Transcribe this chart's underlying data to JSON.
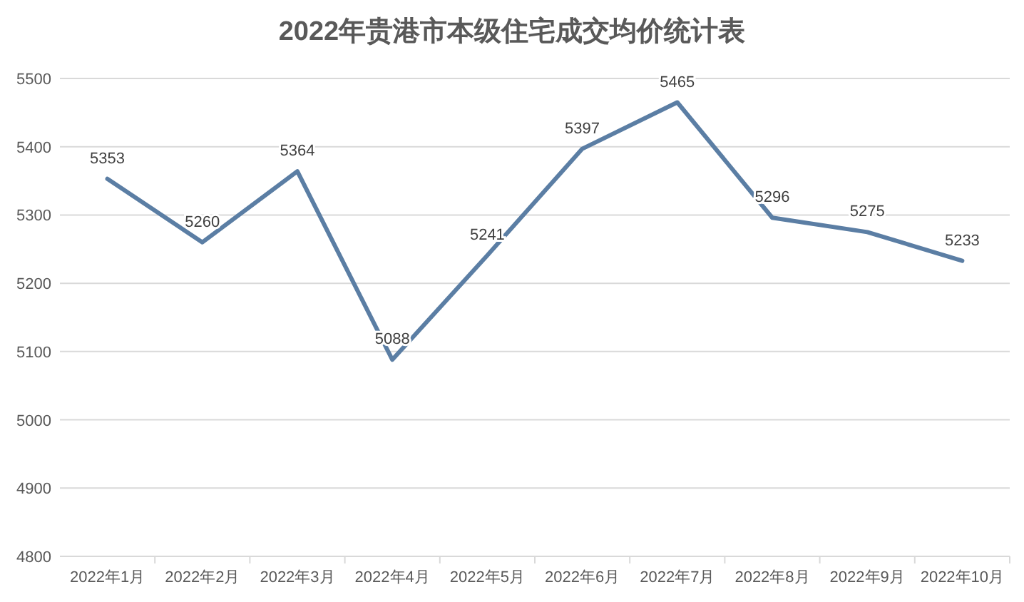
{
  "chart_data": {
    "type": "line",
    "title": "2022年贵港市本级住宅成交均价统计表",
    "categories": [
      "2022年1月",
      "2022年2月",
      "2022年3月",
      "2022年4月",
      "2022年5月",
      "2022年6月",
      "2022年7月",
      "2022年8月",
      "2022年9月",
      "2022年10月"
    ],
    "series": [
      {
        "color": "#5b7ea4",
        "values": [
          5353,
          5260,
          5364,
          5088,
          5241,
          5397,
          5465,
          5296,
          5275,
          5233
        ]
      }
    ],
    "ylim": [
      4800,
      5500
    ],
    "yticks": [
      4800,
      4900,
      5000,
      5100,
      5200,
      5300,
      5400,
      5500
    ],
    "grid": "y",
    "data_labels": true,
    "marker": "none",
    "line_style": "solid"
  }
}
